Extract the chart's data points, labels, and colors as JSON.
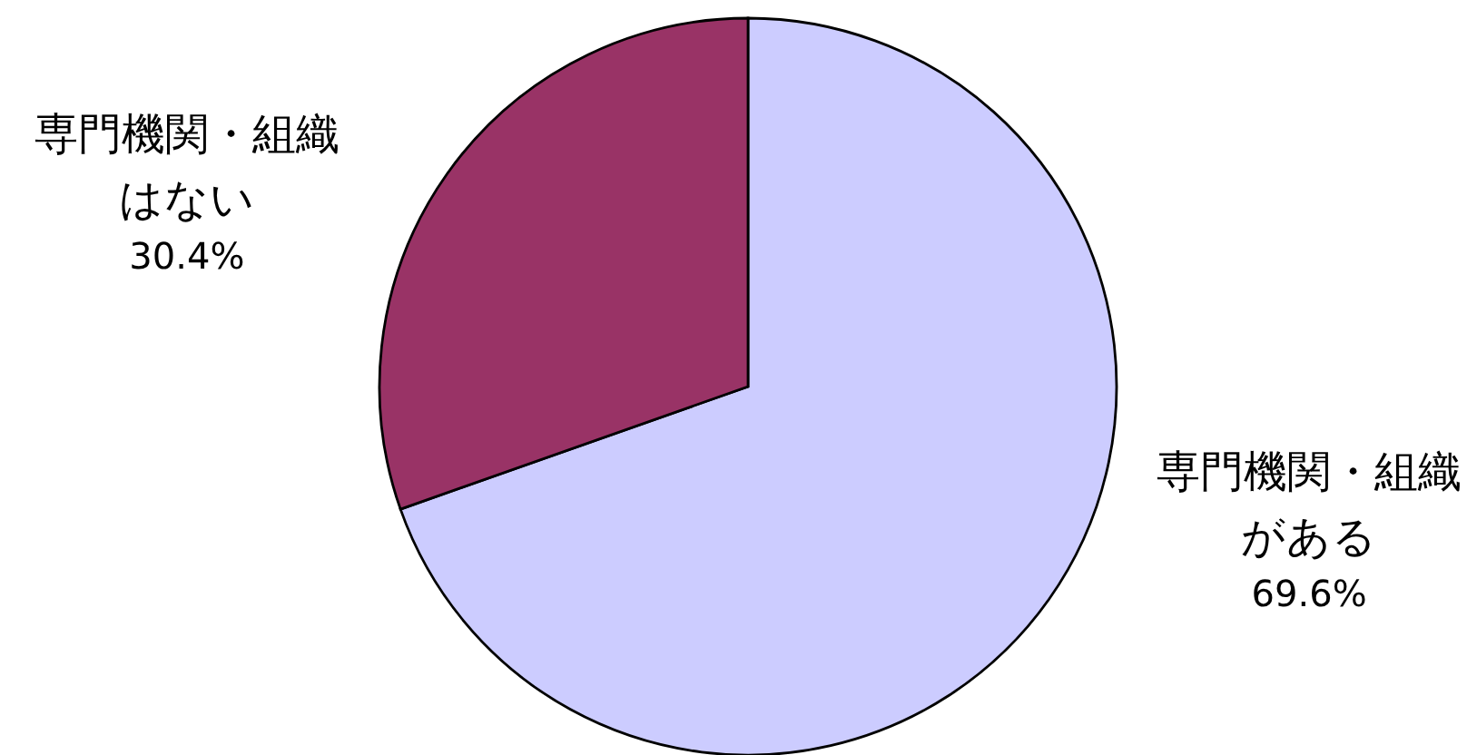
{
  "chart_data": {
    "type": "pie",
    "categories": [
      "専門機関・組織がある",
      "専門機関・組織はない"
    ],
    "values": [
      69.6,
      30.4
    ],
    "colors": [
      "#ccccff",
      "#993366"
    ],
    "value_labels": [
      "69.6%",
      "30.4%"
    ]
  }
}
